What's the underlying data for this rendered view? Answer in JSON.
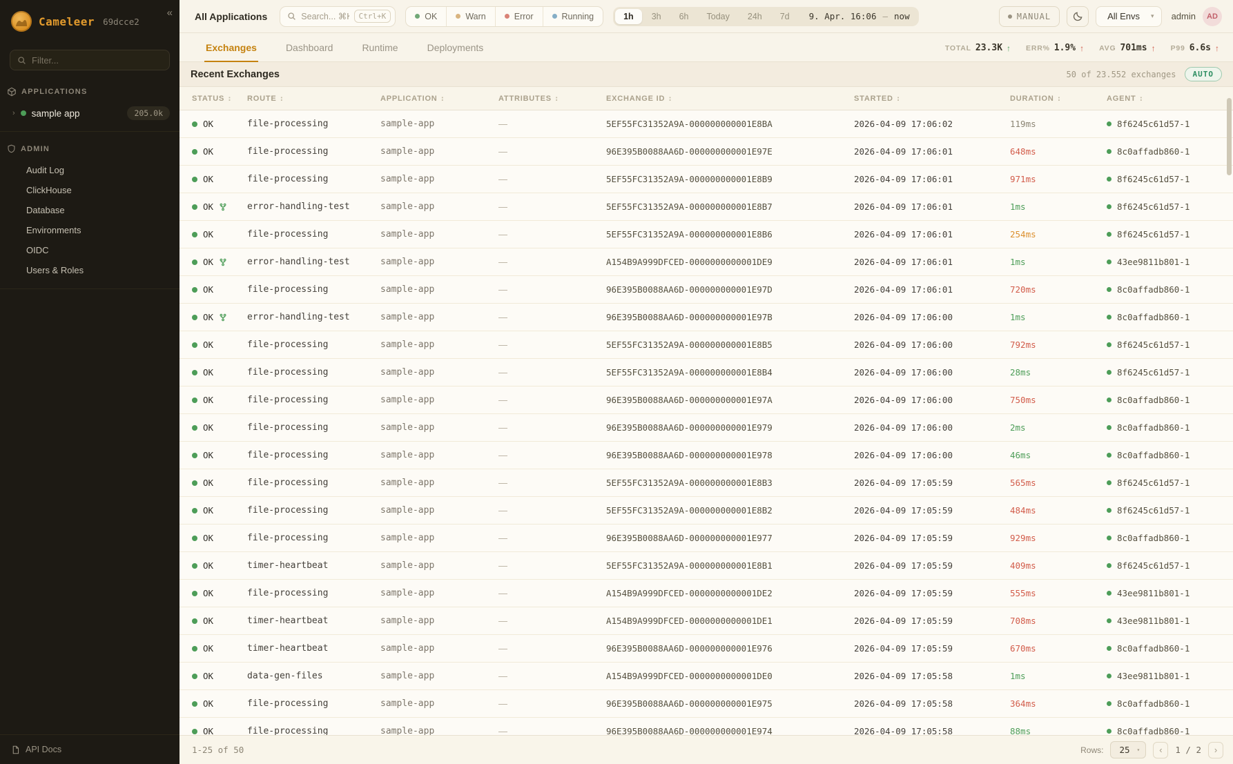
{
  "colors": {
    "green": "#4d9d58",
    "red": "#d25c4a",
    "orange": "#dc8f2e",
    "gray": "#8b8473",
    "accent": "#c5820f",
    "ok_dot": "#71a877",
    "warn_dot": "#d9b47f",
    "error_dot": "#d98276",
    "running_dot": "#85aec6"
  },
  "sidebar": {
    "logo_text": "Cameleer",
    "logo_suffix": "69dcce2",
    "collapse_icon": "«",
    "filter_placeholder": "Filter...",
    "applications_header": "APPLICATIONS",
    "app": {
      "chevron": "›",
      "name": "sample app",
      "count": "205.0k"
    },
    "admin_header": "ADMIN",
    "admin_items": [
      "Audit Log",
      "ClickHouse",
      "Database",
      "Environments",
      "OIDC",
      "Users & Roles"
    ],
    "api_docs_label": "API Docs"
  },
  "topbar": {
    "scope_title": "All Applications",
    "search_placeholder": "Search... ⌘K",
    "search_shortcut": "Ctrl+K",
    "status_filters": [
      {
        "label": "OK",
        "color": "#71a877"
      },
      {
        "label": "Warn",
        "color": "#d9b47f"
      },
      {
        "label": "Error",
        "color": "#d98276"
      },
      {
        "label": "Running",
        "color": "#85aec6"
      }
    ],
    "time_ranges": [
      "1h",
      "3h",
      "6h",
      "Today",
      "24h",
      "7d"
    ],
    "active_range": "1h",
    "date_from": "9. Apr. 16:06",
    "date_separator": "—",
    "date_to": "now",
    "manual_label": "MANUAL",
    "env_selected": "All Envs",
    "env_caret": "▾",
    "user_name": "admin",
    "avatar_initials": "AD"
  },
  "tabs": [
    {
      "label": "Exchanges",
      "active": true
    },
    {
      "label": "Dashboard",
      "active": false
    },
    {
      "label": "Runtime",
      "active": false
    },
    {
      "label": "Deployments",
      "active": false
    }
  ],
  "stats": [
    {
      "label": "TOTAL",
      "value": "23.3K",
      "arrow": "↑",
      "arrow_color": "#4f9f5f"
    },
    {
      "label": "ERR%",
      "value": "1.9%",
      "arrow": "↑",
      "arrow_color": "#cf5a4a"
    },
    {
      "label": "AVG",
      "value": "701ms",
      "arrow": "↑",
      "arrow_color": "#cf5a4a"
    },
    {
      "label": "P99",
      "value": "6.6s",
      "arrow": "↑",
      "arrow_color": "#cf5a4a"
    }
  ],
  "panel": {
    "title": "Recent Exchanges",
    "count_text": "50 of 23.552 exchanges",
    "auto_label": "AUTO"
  },
  "table": {
    "sort_icon": ":",
    "headers": [
      "STATUS",
      "ROUTE",
      "APPLICATION",
      "ATTRIBUTES",
      "EXCHANGE ID",
      "STARTED",
      "DURATION",
      "AGENT"
    ],
    "attributes_empty": "—",
    "rows": [
      {
        "status": "OK",
        "fork": false,
        "route": "file-processing",
        "application": "sample-app",
        "exchange_id": "5EF55FC31352A9A-000000000001E8BA",
        "started": "2026-04-09 17:06:02",
        "duration": "119ms",
        "duration_color": "gray",
        "agent": "8f6245c61d57-1"
      },
      {
        "status": "OK",
        "fork": false,
        "route": "file-processing",
        "application": "sample-app",
        "exchange_id": "96E395B0088AA6D-000000000001E97E",
        "started": "2026-04-09 17:06:01",
        "duration": "648ms",
        "duration_color": "red",
        "agent": "8c0affadb860-1"
      },
      {
        "status": "OK",
        "fork": false,
        "route": "file-processing",
        "application": "sample-app",
        "exchange_id": "5EF55FC31352A9A-000000000001E8B9",
        "started": "2026-04-09 17:06:01",
        "duration": "971ms",
        "duration_color": "red",
        "agent": "8f6245c61d57-1"
      },
      {
        "status": "OK",
        "fork": true,
        "route": "error-handling-test",
        "application": "sample-app",
        "exchange_id": "5EF55FC31352A9A-000000000001E8B7",
        "started": "2026-04-09 17:06:01",
        "duration": "1ms",
        "duration_color": "green",
        "agent": "8f6245c61d57-1"
      },
      {
        "status": "OK",
        "fork": false,
        "route": "file-processing",
        "application": "sample-app",
        "exchange_id": "5EF55FC31352A9A-000000000001E8B6",
        "started": "2026-04-09 17:06:01",
        "duration": "254ms",
        "duration_color": "orange",
        "agent": "8f6245c61d57-1"
      },
      {
        "status": "OK",
        "fork": true,
        "route": "error-handling-test",
        "application": "sample-app",
        "exchange_id": "A154B9A999DFCED-0000000000001DE9",
        "started": "2026-04-09 17:06:01",
        "duration": "1ms",
        "duration_color": "green",
        "agent": "43ee9811b801-1"
      },
      {
        "status": "OK",
        "fork": false,
        "route": "file-processing",
        "application": "sample-app",
        "exchange_id": "96E395B0088AA6D-000000000001E97D",
        "started": "2026-04-09 17:06:01",
        "duration": "720ms",
        "duration_color": "red",
        "agent": "8c0affadb860-1"
      },
      {
        "status": "OK",
        "fork": true,
        "route": "error-handling-test",
        "application": "sample-app",
        "exchange_id": "96E395B0088AA6D-000000000001E97B",
        "started": "2026-04-09 17:06:00",
        "duration": "1ms",
        "duration_color": "green",
        "agent": "8c0affadb860-1"
      },
      {
        "status": "OK",
        "fork": false,
        "route": "file-processing",
        "application": "sample-app",
        "exchange_id": "5EF55FC31352A9A-000000000001E8B5",
        "started": "2026-04-09 17:06:00",
        "duration": "792ms",
        "duration_color": "red",
        "agent": "8f6245c61d57-1"
      },
      {
        "status": "OK",
        "fork": false,
        "route": "file-processing",
        "application": "sample-app",
        "exchange_id": "5EF55FC31352A9A-000000000001E8B4",
        "started": "2026-04-09 17:06:00",
        "duration": "28ms",
        "duration_color": "green",
        "agent": "8f6245c61d57-1"
      },
      {
        "status": "OK",
        "fork": false,
        "route": "file-processing",
        "application": "sample-app",
        "exchange_id": "96E395B0088AA6D-000000000001E97A",
        "started": "2026-04-09 17:06:00",
        "duration": "750ms",
        "duration_color": "red",
        "agent": "8c0affadb860-1"
      },
      {
        "status": "OK",
        "fork": false,
        "route": "file-processing",
        "application": "sample-app",
        "exchange_id": "96E395B0088AA6D-000000000001E979",
        "started": "2026-04-09 17:06:00",
        "duration": "2ms",
        "duration_color": "green",
        "agent": "8c0affadb860-1"
      },
      {
        "status": "OK",
        "fork": false,
        "route": "file-processing",
        "application": "sample-app",
        "exchange_id": "96E395B0088AA6D-000000000001E978",
        "started": "2026-04-09 17:06:00",
        "duration": "46ms",
        "duration_color": "green",
        "agent": "8c0affadb860-1"
      },
      {
        "status": "OK",
        "fork": false,
        "route": "file-processing",
        "application": "sample-app",
        "exchange_id": "5EF55FC31352A9A-000000000001E8B3",
        "started": "2026-04-09 17:05:59",
        "duration": "565ms",
        "duration_color": "red",
        "agent": "8f6245c61d57-1"
      },
      {
        "status": "OK",
        "fork": false,
        "route": "file-processing",
        "application": "sample-app",
        "exchange_id": "5EF55FC31352A9A-000000000001E8B2",
        "started": "2026-04-09 17:05:59",
        "duration": "484ms",
        "duration_color": "red",
        "agent": "8f6245c61d57-1"
      },
      {
        "status": "OK",
        "fork": false,
        "route": "file-processing",
        "application": "sample-app",
        "exchange_id": "96E395B0088AA6D-000000000001E977",
        "started": "2026-04-09 17:05:59",
        "duration": "929ms",
        "duration_color": "red",
        "agent": "8c0affadb860-1"
      },
      {
        "status": "OK",
        "fork": false,
        "route": "timer-heartbeat",
        "application": "sample-app",
        "exchange_id": "5EF55FC31352A9A-000000000001E8B1",
        "started": "2026-04-09 17:05:59",
        "duration": "409ms",
        "duration_color": "red",
        "agent": "8f6245c61d57-1"
      },
      {
        "status": "OK",
        "fork": false,
        "route": "file-processing",
        "application": "sample-app",
        "exchange_id": "A154B9A999DFCED-0000000000001DE2",
        "started": "2026-04-09 17:05:59",
        "duration": "555ms",
        "duration_color": "red",
        "agent": "43ee9811b801-1"
      },
      {
        "status": "OK",
        "fork": false,
        "route": "timer-heartbeat",
        "application": "sample-app",
        "exchange_id": "A154B9A999DFCED-0000000000001DE1",
        "started": "2026-04-09 17:05:59",
        "duration": "708ms",
        "duration_color": "red",
        "agent": "43ee9811b801-1"
      },
      {
        "status": "OK",
        "fork": false,
        "route": "timer-heartbeat",
        "application": "sample-app",
        "exchange_id": "96E395B0088AA6D-000000000001E976",
        "started": "2026-04-09 17:05:59",
        "duration": "670ms",
        "duration_color": "red",
        "agent": "8c0affadb860-1"
      },
      {
        "status": "OK",
        "fork": false,
        "route": "data-gen-files",
        "application": "sample-app",
        "exchange_id": "A154B9A999DFCED-0000000000001DE0",
        "started": "2026-04-09 17:05:58",
        "duration": "1ms",
        "duration_color": "green",
        "agent": "43ee9811b801-1"
      },
      {
        "status": "OK",
        "fork": false,
        "route": "file-processing",
        "application": "sample-app",
        "exchange_id": "96E395B0088AA6D-000000000001E975",
        "started": "2026-04-09 17:05:58",
        "duration": "364ms",
        "duration_color": "red",
        "agent": "8c0affadb860-1"
      },
      {
        "status": "OK",
        "fork": false,
        "route": "file-processing",
        "application": "sample-app",
        "exchange_id": "96E395B0088AA6D-000000000001E974",
        "started": "2026-04-09 17:05:58",
        "duration": "88ms",
        "duration_color": "green",
        "agent": "8c0affadb860-1"
      }
    ]
  },
  "footer": {
    "range_text": "1-25 of 50",
    "rows_label": "Rows:",
    "rows_value": "25",
    "rows_caret": "▾",
    "prev_icon": "‹",
    "page_info": "1 / 2",
    "next_icon": "›"
  }
}
